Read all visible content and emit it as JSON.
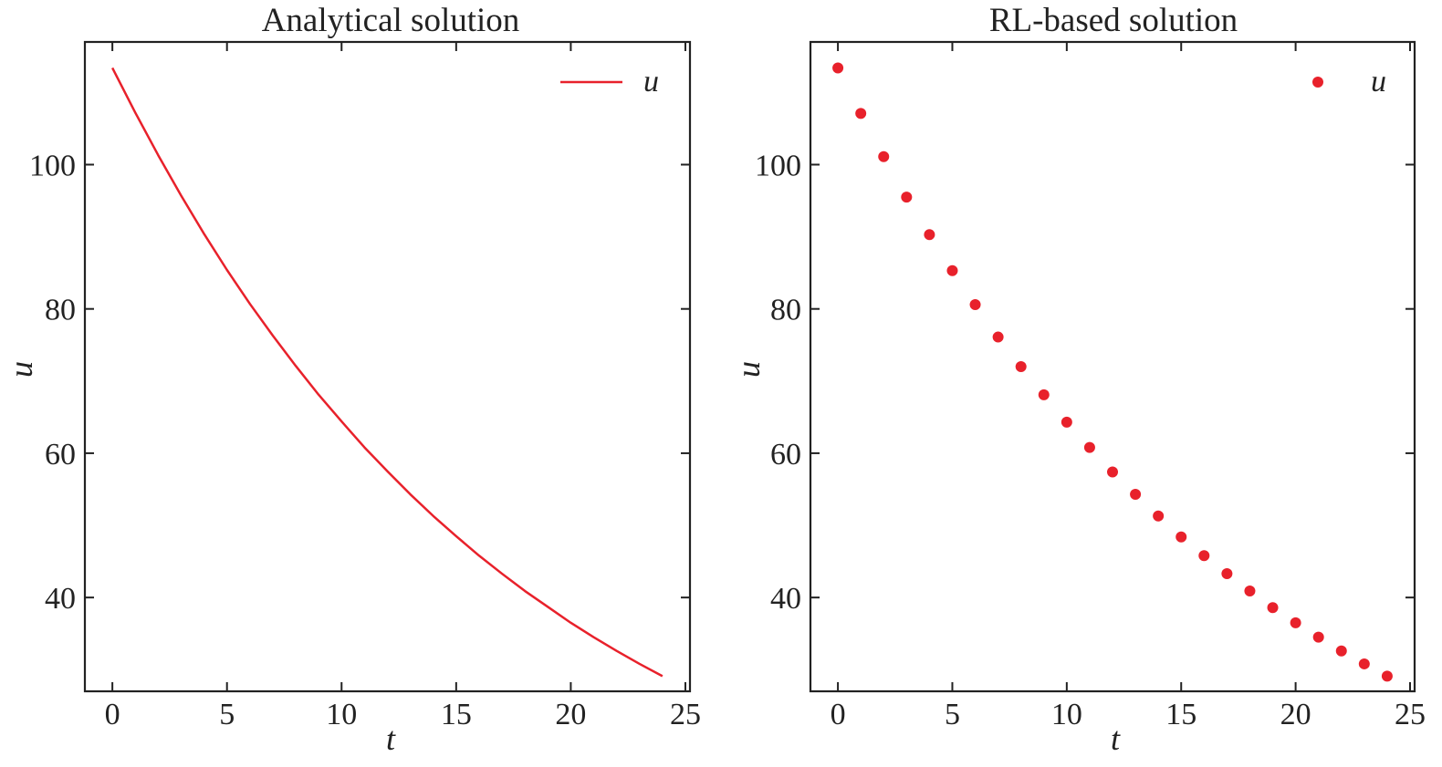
{
  "chart_data": [
    {
      "type": "line",
      "title": "Analytical solution",
      "xlabel": "t",
      "ylabel": "u",
      "xlim": [
        -1.2,
        25.2
      ],
      "ylim": [
        27,
        117
      ],
      "xticks": [
        0,
        5,
        10,
        15,
        20,
        25
      ],
      "yticks": [
        40,
        60,
        80,
        100
      ],
      "xtick_labels": [
        "0",
        "5",
        "10",
        "15",
        "20",
        "25"
      ],
      "ytick_labels": [
        "40",
        "60",
        "80",
        "100"
      ],
      "grid": false,
      "legend": "top-right",
      "color": "#e8212b",
      "series": [
        {
          "name": "u",
          "x": [
            0,
            1,
            2,
            3,
            4,
            5,
            6,
            7,
            8,
            9,
            10,
            11,
            12,
            13,
            14,
            15,
            16,
            17,
            18,
            19,
            20,
            21,
            22,
            23,
            24
          ],
          "y": [
            113.4,
            107.2,
            101.3,
            95.7,
            90.4,
            85.4,
            80.7,
            76.3,
            72.1,
            68.1,
            64.4,
            60.8,
            57.5,
            54.3,
            51.3,
            48.5,
            45.8,
            43.3,
            40.9,
            38.7,
            36.5,
            34.5,
            32.6,
            30.8,
            29.1
          ]
        }
      ]
    },
    {
      "type": "scatter",
      "title": "RL-based solution",
      "xlabel": "t",
      "ylabel": "u",
      "xlim": [
        -1.2,
        25.2
      ],
      "ylim": [
        27,
        117
      ],
      "xticks": [
        0,
        5,
        10,
        15,
        20,
        25
      ],
      "yticks": [
        40,
        60,
        80,
        100
      ],
      "xtick_labels": [
        "0",
        "5",
        "10",
        "15",
        "20",
        "25"
      ],
      "ytick_labels": [
        "40",
        "60",
        "80",
        "100"
      ],
      "grid": false,
      "legend": "top-right",
      "color": "#e8212b",
      "series": [
        {
          "name": "u",
          "x": [
            0,
            1,
            2,
            3,
            4,
            5,
            6,
            7,
            8,
            9,
            10,
            11,
            12,
            13,
            14,
            15,
            16,
            17,
            18,
            19,
            20,
            21,
            22,
            23,
            24
          ],
          "y": [
            113.4,
            107.1,
            101.1,
            95.5,
            90.3,
            85.3,
            80.6,
            76.1,
            72.0,
            68.1,
            64.3,
            60.8,
            57.4,
            54.3,
            51.3,
            48.4,
            45.8,
            43.3,
            40.9,
            38.6,
            36.5,
            34.5,
            32.6,
            30.8,
            29.1
          ]
        }
      ]
    }
  ]
}
